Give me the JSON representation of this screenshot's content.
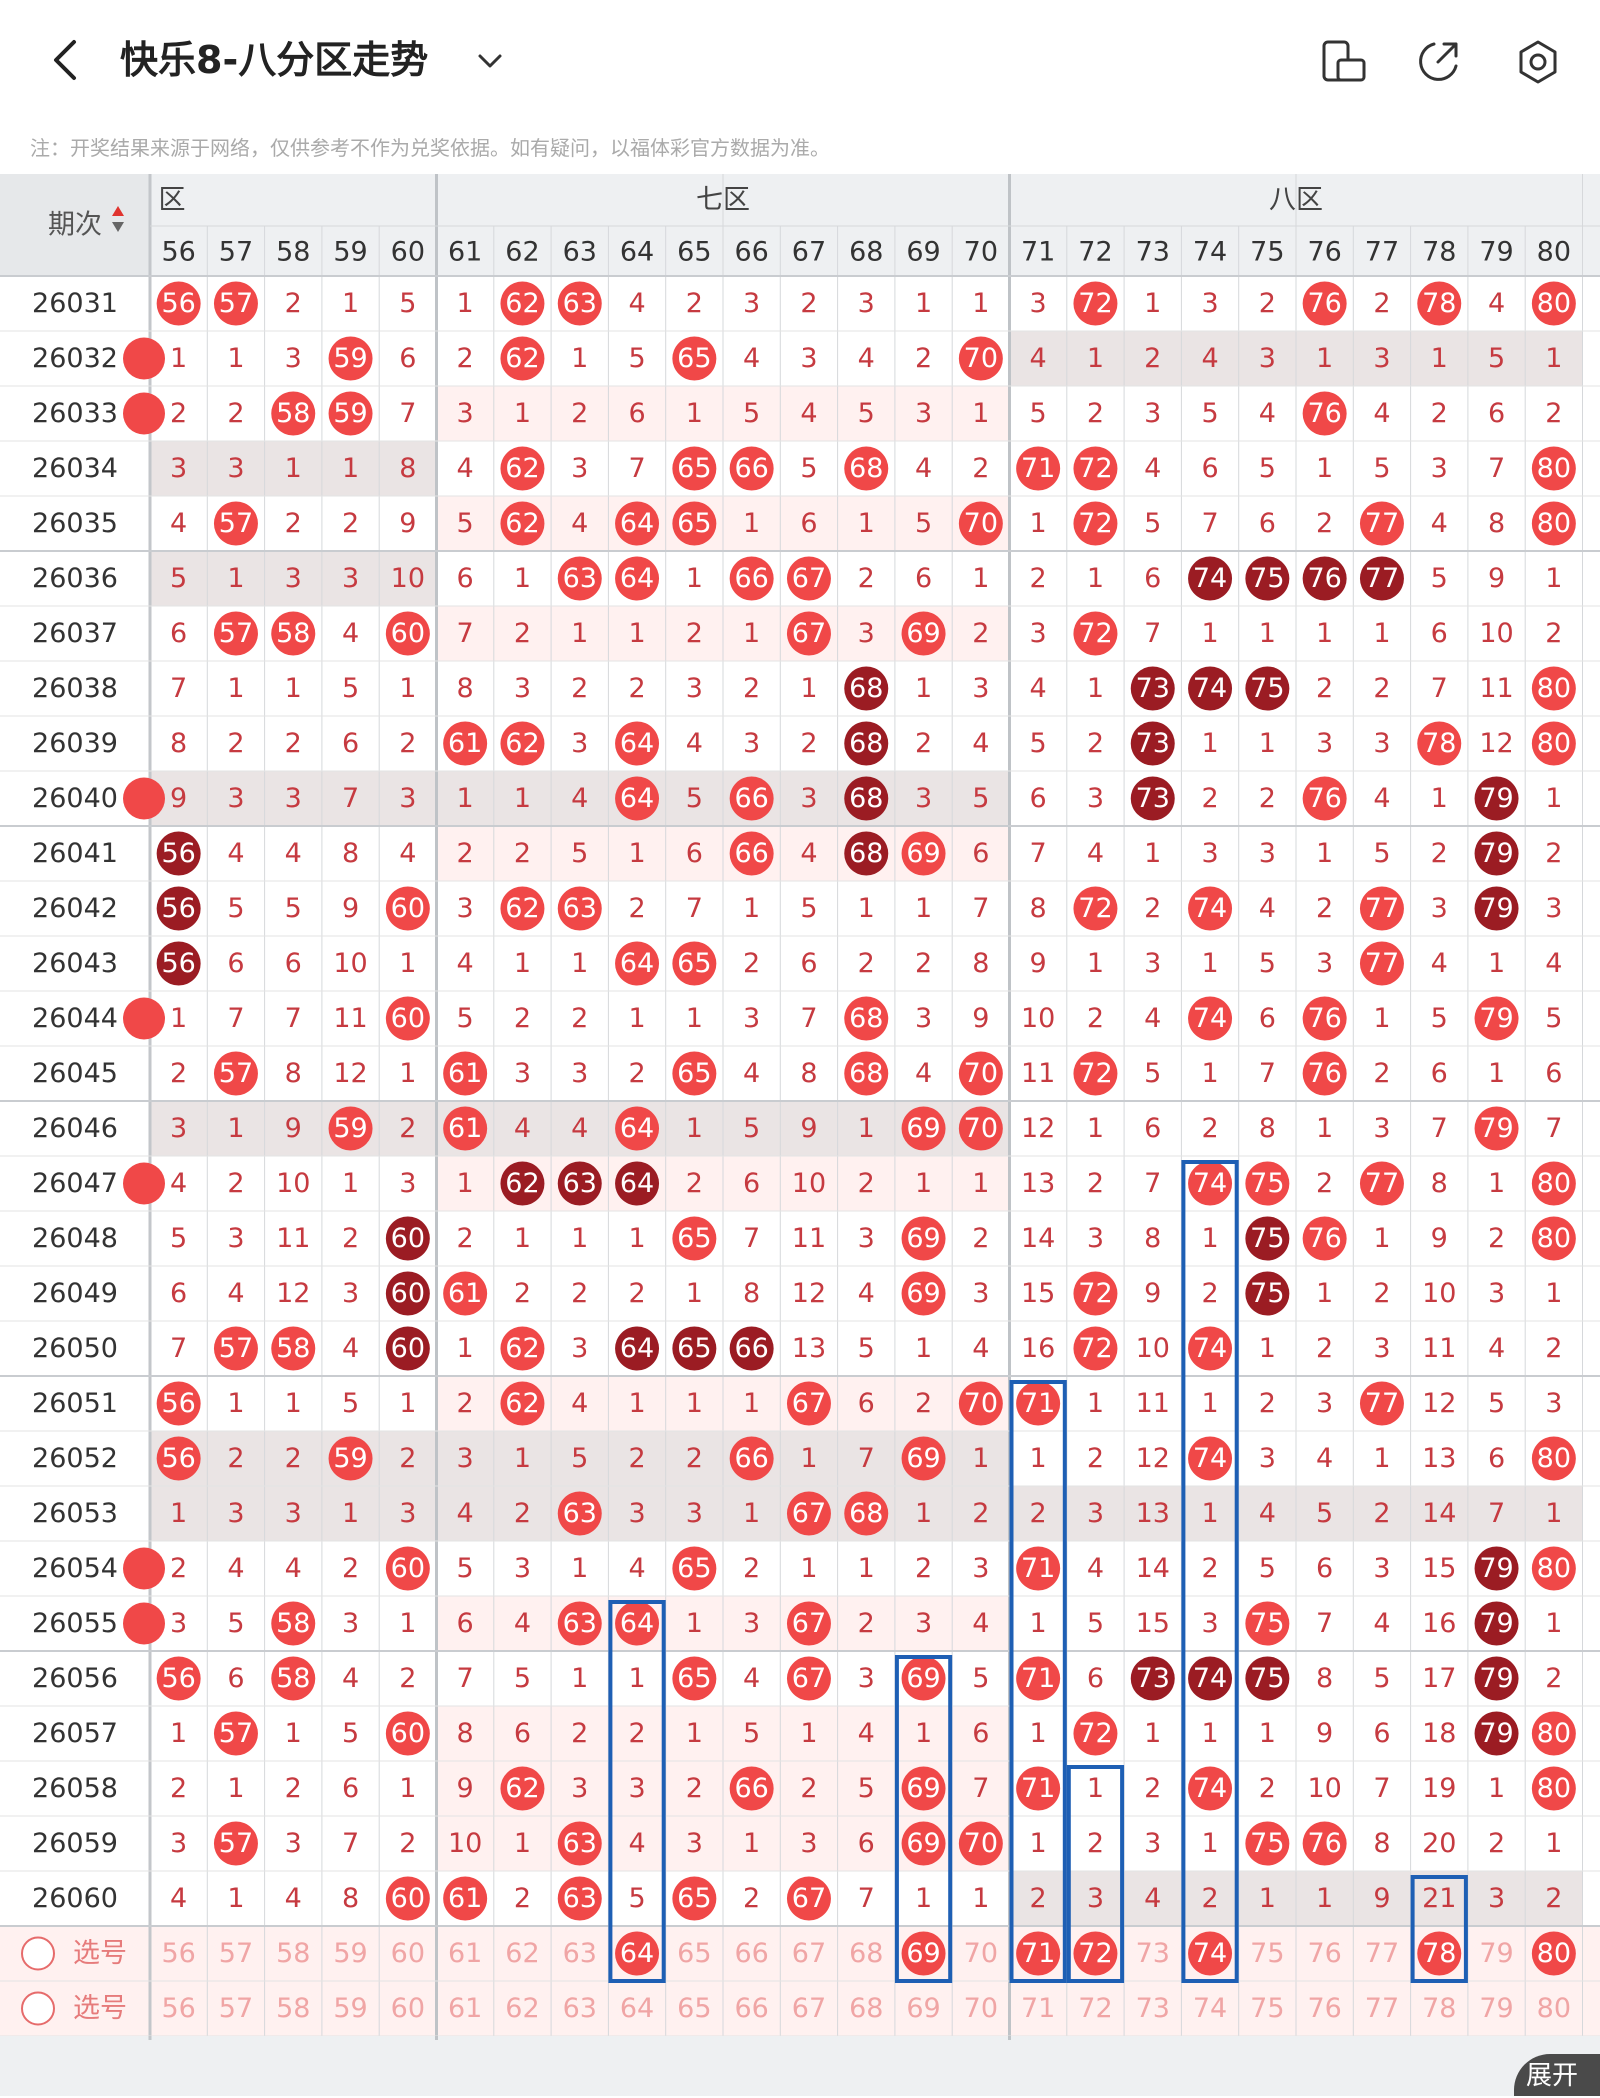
{
  "header": {
    "title": "快乐8-八分区走势",
    "note": "注：开奖结果来源于网络，仅供参考不作为兑奖依据。如有疑问，以福体彩官方数据为准。"
  },
  "table": {
    "period_header": "期次",
    "zone_headers": [
      {
        "label": "六区",
        "shown": "区"
      },
      {
        "label": "七区",
        "shown": "七区"
      },
      {
        "label": "八区",
        "shown": "八区"
      }
    ],
    "columns": [
      "56",
      "57",
      "58",
      "59",
      "60",
      "61",
      "62",
      "63",
      "64",
      "65",
      "66",
      "67",
      "68",
      "69",
      "70",
      "71",
      "72",
      "73",
      "74",
      "75",
      "76",
      "77",
      "78",
      "79",
      "80"
    ],
    "rows": [
      {
        "period": "26031",
        "cells": [
          "56",
          "57",
          "2",
          "1",
          "5",
          "1",
          "62",
          "63",
          "4",
          "2",
          "3",
          "2",
          "3",
          "1",
          "1",
          "3",
          "72",
          "1",
          "3",
          "2",
          "76",
          "2",
          "78",
          "4",
          "80"
        ]
      },
      {
        "period": "26032",
        "cells": [
          "1",
          "1",
          "3",
          "59",
          "6",
          "2",
          "62",
          "1",
          "5",
          "65",
          "4",
          "3",
          "4",
          "2",
          "70",
          "4",
          "1",
          "2",
          "4",
          "3",
          "1",
          "3",
          "1",
          "5",
          "1"
        ]
      },
      {
        "period": "26033",
        "cells": [
          "2",
          "2",
          "58",
          "59",
          "7",
          "3",
          "1",
          "2",
          "6",
          "1",
          "5",
          "4",
          "5",
          "3",
          "1",
          "5",
          "2",
          "3",
          "5",
          "4",
          "76",
          "4",
          "2",
          "6",
          "2"
        ]
      },
      {
        "period": "26034",
        "cells": [
          "3",
          "3",
          "1",
          "1",
          "8",
          "4",
          "62",
          "3",
          "7",
          "65",
          "66",
          "5",
          "68",
          "4",
          "2",
          "71",
          "72",
          "4",
          "6",
          "5",
          "1",
          "5",
          "3",
          "7",
          "80"
        ]
      },
      {
        "period": "26035",
        "cells": [
          "4",
          "57",
          "2",
          "2",
          "9",
          "5",
          "62",
          "4",
          "64",
          "65",
          "1",
          "6",
          "1",
          "5",
          "70",
          "1",
          "72",
          "5",
          "7",
          "6",
          "2",
          "77",
          "4",
          "8",
          "80"
        ]
      },
      {
        "period": "26036",
        "cells": [
          "5",
          "1",
          "3",
          "3",
          "10",
          "6",
          "1",
          "63",
          "64",
          "1",
          "66",
          "67",
          "2",
          "6",
          "1",
          "2",
          "1",
          "6",
          "74",
          "75",
          "76",
          "77",
          "5",
          "9",
          "1"
        ]
      },
      {
        "period": "26037",
        "cells": [
          "6",
          "57",
          "58",
          "4",
          "60",
          "7",
          "2",
          "1",
          "1",
          "2",
          "1",
          "67",
          "3",
          "69",
          "2",
          "3",
          "72",
          "7",
          "1",
          "1",
          "1",
          "1",
          "6",
          "10",
          "2"
        ]
      },
      {
        "period": "26038",
        "cells": [
          "7",
          "1",
          "1",
          "5",
          "1",
          "8",
          "3",
          "2",
          "2",
          "3",
          "2",
          "1",
          "68",
          "1",
          "3",
          "4",
          "1",
          "73",
          "74",
          "75",
          "2",
          "2",
          "7",
          "11",
          "80"
        ]
      },
      {
        "period": "26039",
        "cells": [
          "8",
          "2",
          "2",
          "6",
          "2",
          "61",
          "62",
          "3",
          "64",
          "4",
          "3",
          "2",
          "68",
          "2",
          "4",
          "5",
          "2",
          "73",
          "1",
          "1",
          "3",
          "3",
          "78",
          "12",
          "80"
        ]
      },
      {
        "period": "26040",
        "cells": [
          "9",
          "3",
          "3",
          "7",
          "3",
          "1",
          "1",
          "4",
          "64",
          "5",
          "66",
          "3",
          "68",
          "3",
          "5",
          "6",
          "3",
          "73",
          "2",
          "2",
          "76",
          "4",
          "1",
          "79",
          "1"
        ]
      },
      {
        "period": "26041",
        "cells": [
          "56",
          "4",
          "4",
          "8",
          "4",
          "2",
          "2",
          "5",
          "1",
          "6",
          "66",
          "4",
          "68",
          "69",
          "6",
          "7",
          "4",
          "1",
          "3",
          "3",
          "1",
          "5",
          "2",
          "79",
          "2"
        ]
      },
      {
        "period": "26042",
        "cells": [
          "56",
          "5",
          "5",
          "9",
          "60",
          "3",
          "62",
          "63",
          "2",
          "7",
          "1",
          "5",
          "1",
          "1",
          "7",
          "8",
          "72",
          "2",
          "74",
          "4",
          "2",
          "77",
          "3",
          "79",
          "3"
        ]
      },
      {
        "period": "26043",
        "cells": [
          "56",
          "6",
          "6",
          "10",
          "1",
          "4",
          "1",
          "1",
          "64",
          "65",
          "2",
          "6",
          "2",
          "2",
          "8",
          "9",
          "1",
          "3",
          "1",
          "5",
          "3",
          "77",
          "4",
          "1",
          "4"
        ]
      },
      {
        "period": "26044",
        "cells": [
          "1",
          "7",
          "7",
          "11",
          "60",
          "5",
          "2",
          "2",
          "1",
          "1",
          "3",
          "7",
          "68",
          "3",
          "9",
          "10",
          "2",
          "4",
          "74",
          "6",
          "76",
          "1",
          "5",
          "79",
          "5"
        ]
      },
      {
        "period": "26045",
        "cells": [
          "2",
          "57",
          "8",
          "12",
          "1",
          "61",
          "3",
          "3",
          "2",
          "65",
          "4",
          "8",
          "68",
          "4",
          "70",
          "11",
          "72",
          "5",
          "1",
          "7",
          "76",
          "2",
          "6",
          "1",
          "6"
        ]
      },
      {
        "period": "26046",
        "cells": [
          "3",
          "1",
          "9",
          "59",
          "2",
          "61",
          "4",
          "4",
          "64",
          "1",
          "5",
          "9",
          "1",
          "69",
          "70",
          "12",
          "1",
          "6",
          "2",
          "8",
          "1",
          "3",
          "7",
          "79",
          "7"
        ]
      },
      {
        "period": "26047",
        "cells": [
          "4",
          "2",
          "10",
          "1",
          "3",
          "1",
          "62",
          "63",
          "64",
          "2",
          "6",
          "10",
          "2",
          "1",
          "1",
          "13",
          "2",
          "7",
          "74",
          "75",
          "2",
          "77",
          "8",
          "1",
          "80"
        ]
      },
      {
        "period": "26048",
        "cells": [
          "5",
          "3",
          "11",
          "2",
          "60",
          "2",
          "1",
          "1",
          "1",
          "65",
          "7",
          "11",
          "3",
          "69",
          "2",
          "14",
          "3",
          "8",
          "1",
          "75",
          "76",
          "1",
          "9",
          "2",
          "80"
        ]
      },
      {
        "period": "26049",
        "cells": [
          "6",
          "4",
          "12",
          "3",
          "60",
          "61",
          "2",
          "2",
          "2",
          "1",
          "8",
          "12",
          "4",
          "69",
          "3",
          "15",
          "72",
          "9",
          "2",
          "75",
          "1",
          "2",
          "10",
          "3",
          "1"
        ]
      },
      {
        "period": "26050",
        "cells": [
          "7",
          "57",
          "58",
          "4",
          "60",
          "1",
          "62",
          "3",
          "64",
          "65",
          "66",
          "13",
          "5",
          "1",
          "4",
          "16",
          "72",
          "10",
          "74",
          "1",
          "2",
          "3",
          "11",
          "4",
          "2"
        ]
      },
      {
        "period": "26051",
        "cells": [
          "56",
          "1",
          "1",
          "5",
          "1",
          "2",
          "62",
          "4",
          "1",
          "1",
          "1",
          "67",
          "6",
          "2",
          "70",
          "71",
          "1",
          "11",
          "1",
          "2",
          "3",
          "77",
          "12",
          "5",
          "3"
        ]
      },
      {
        "period": "26052",
        "cells": [
          "56",
          "2",
          "2",
          "59",
          "2",
          "3",
          "1",
          "5",
          "2",
          "2",
          "66",
          "1",
          "7",
          "69",
          "1",
          "1",
          "2",
          "12",
          "74",
          "3",
          "4",
          "1",
          "13",
          "6",
          "80"
        ]
      },
      {
        "period": "26053",
        "cells": [
          "1",
          "3",
          "3",
          "1",
          "3",
          "4",
          "2",
          "63",
          "3",
          "3",
          "1",
          "67",
          "68",
          "1",
          "2",
          "2",
          "3",
          "13",
          "1",
          "4",
          "5",
          "2",
          "14",
          "7",
          "1"
        ]
      },
      {
        "period": "26054",
        "cells": [
          "2",
          "4",
          "4",
          "2",
          "60",
          "5",
          "3",
          "1",
          "4",
          "65",
          "2",
          "1",
          "1",
          "2",
          "3",
          "71",
          "4",
          "14",
          "2",
          "5",
          "6",
          "3",
          "15",
          "79",
          "80"
        ]
      },
      {
        "period": "26055",
        "cells": [
          "3",
          "5",
          "58",
          "3",
          "1",
          "6",
          "4",
          "63",
          "64",
          "1",
          "3",
          "67",
          "2",
          "3",
          "4",
          "1",
          "5",
          "15",
          "3",
          "75",
          "7",
          "4",
          "16",
          "79",
          "1"
        ]
      },
      {
        "period": "26056",
        "cells": [
          "56",
          "6",
          "58",
          "4",
          "2",
          "7",
          "5",
          "1",
          "1",
          "65",
          "4",
          "67",
          "3",
          "69",
          "5",
          "71",
          "6",
          "73",
          "74",
          "75",
          "8",
          "5",
          "17",
          "79",
          "2"
        ]
      },
      {
        "period": "26057",
        "cells": [
          "1",
          "57",
          "1",
          "5",
          "60",
          "8",
          "6",
          "2",
          "2",
          "1",
          "5",
          "1",
          "4",
          "1",
          "6",
          "1",
          "72",
          "1",
          "1",
          "1",
          "9",
          "6",
          "18",
          "79",
          "80"
        ]
      },
      {
        "period": "26058",
        "cells": [
          "2",
          "1",
          "2",
          "6",
          "1",
          "9",
          "62",
          "3",
          "3",
          "2",
          "66",
          "2",
          "5",
          "69",
          "7",
          "71",
          "1",
          "2",
          "74",
          "2",
          "10",
          "7",
          "19",
          "1",
          "80"
        ]
      },
      {
        "period": "26059",
        "cells": [
          "3",
          "57",
          "3",
          "7",
          "2",
          "10",
          "1",
          "63",
          "4",
          "3",
          "1",
          "3",
          "6",
          "69",
          "70",
          "1",
          "2",
          "3",
          "1",
          "75",
          "76",
          "8",
          "20",
          "2",
          "1"
        ]
      },
      {
        "period": "26060",
        "cells": [
          "4",
          "1",
          "4",
          "8",
          "60",
          "61",
          "2",
          "63",
          "5",
          "65",
          "2",
          "67",
          "7",
          "1",
          "1",
          "2",
          "3",
          "4",
          "2",
          "1",
          "1",
          "9",
          "21",
          "3",
          "2"
        ]
      }
    ],
    "dark_balls": [
      [
        5,
        18
      ],
      [
        5,
        19
      ],
      [
        5,
        20
      ],
      [
        5,
        21
      ],
      [
        7,
        12
      ],
      [
        7,
        17
      ],
      [
        7,
        18
      ],
      [
        7,
        19
      ],
      [
        8,
        12
      ],
      [
        8,
        17
      ],
      [
        9,
        12
      ],
      [
        9,
        17
      ],
      [
        9,
        23
      ],
      [
        10,
        0
      ],
      [
        10,
        12
      ],
      [
        10,
        23
      ],
      [
        11,
        0
      ],
      [
        11,
        23
      ],
      [
        12,
        0
      ],
      [
        16,
        6
      ],
      [
        16,
        7
      ],
      [
        16,
        8
      ],
      [
        17,
        4
      ],
      [
        17,
        19
      ],
      [
        18,
        4
      ],
      [
        18,
        19
      ],
      [
        19,
        4
      ],
      [
        19,
        8
      ],
      [
        19,
        9
      ],
      [
        19,
        10
      ],
      [
        23,
        23
      ],
      [
        24,
        23
      ],
      [
        25,
        17
      ],
      [
        25,
        18
      ],
      [
        25,
        19
      ],
      [
        25,
        23
      ],
      [
        26,
        23
      ]
    ],
    "select_rows": [
      {
        "label": "选号",
        "balls": [
          "64",
          "69",
          "71",
          "72",
          "74",
          "78",
          "80"
        ]
      },
      {
        "label": "选号",
        "balls": []
      }
    ],
    "bottom_partial_period": "-",
    "colors": {
      "red_ball": "#f04848",
      "dark_ball": "#9b1c23",
      "red_text": "#c63a40",
      "pink_row": "#fff1f0",
      "gray_row": "#eae4e4",
      "blue_box": "#1e5fb4"
    }
  },
  "footer": {
    "expand_label": "展开"
  }
}
